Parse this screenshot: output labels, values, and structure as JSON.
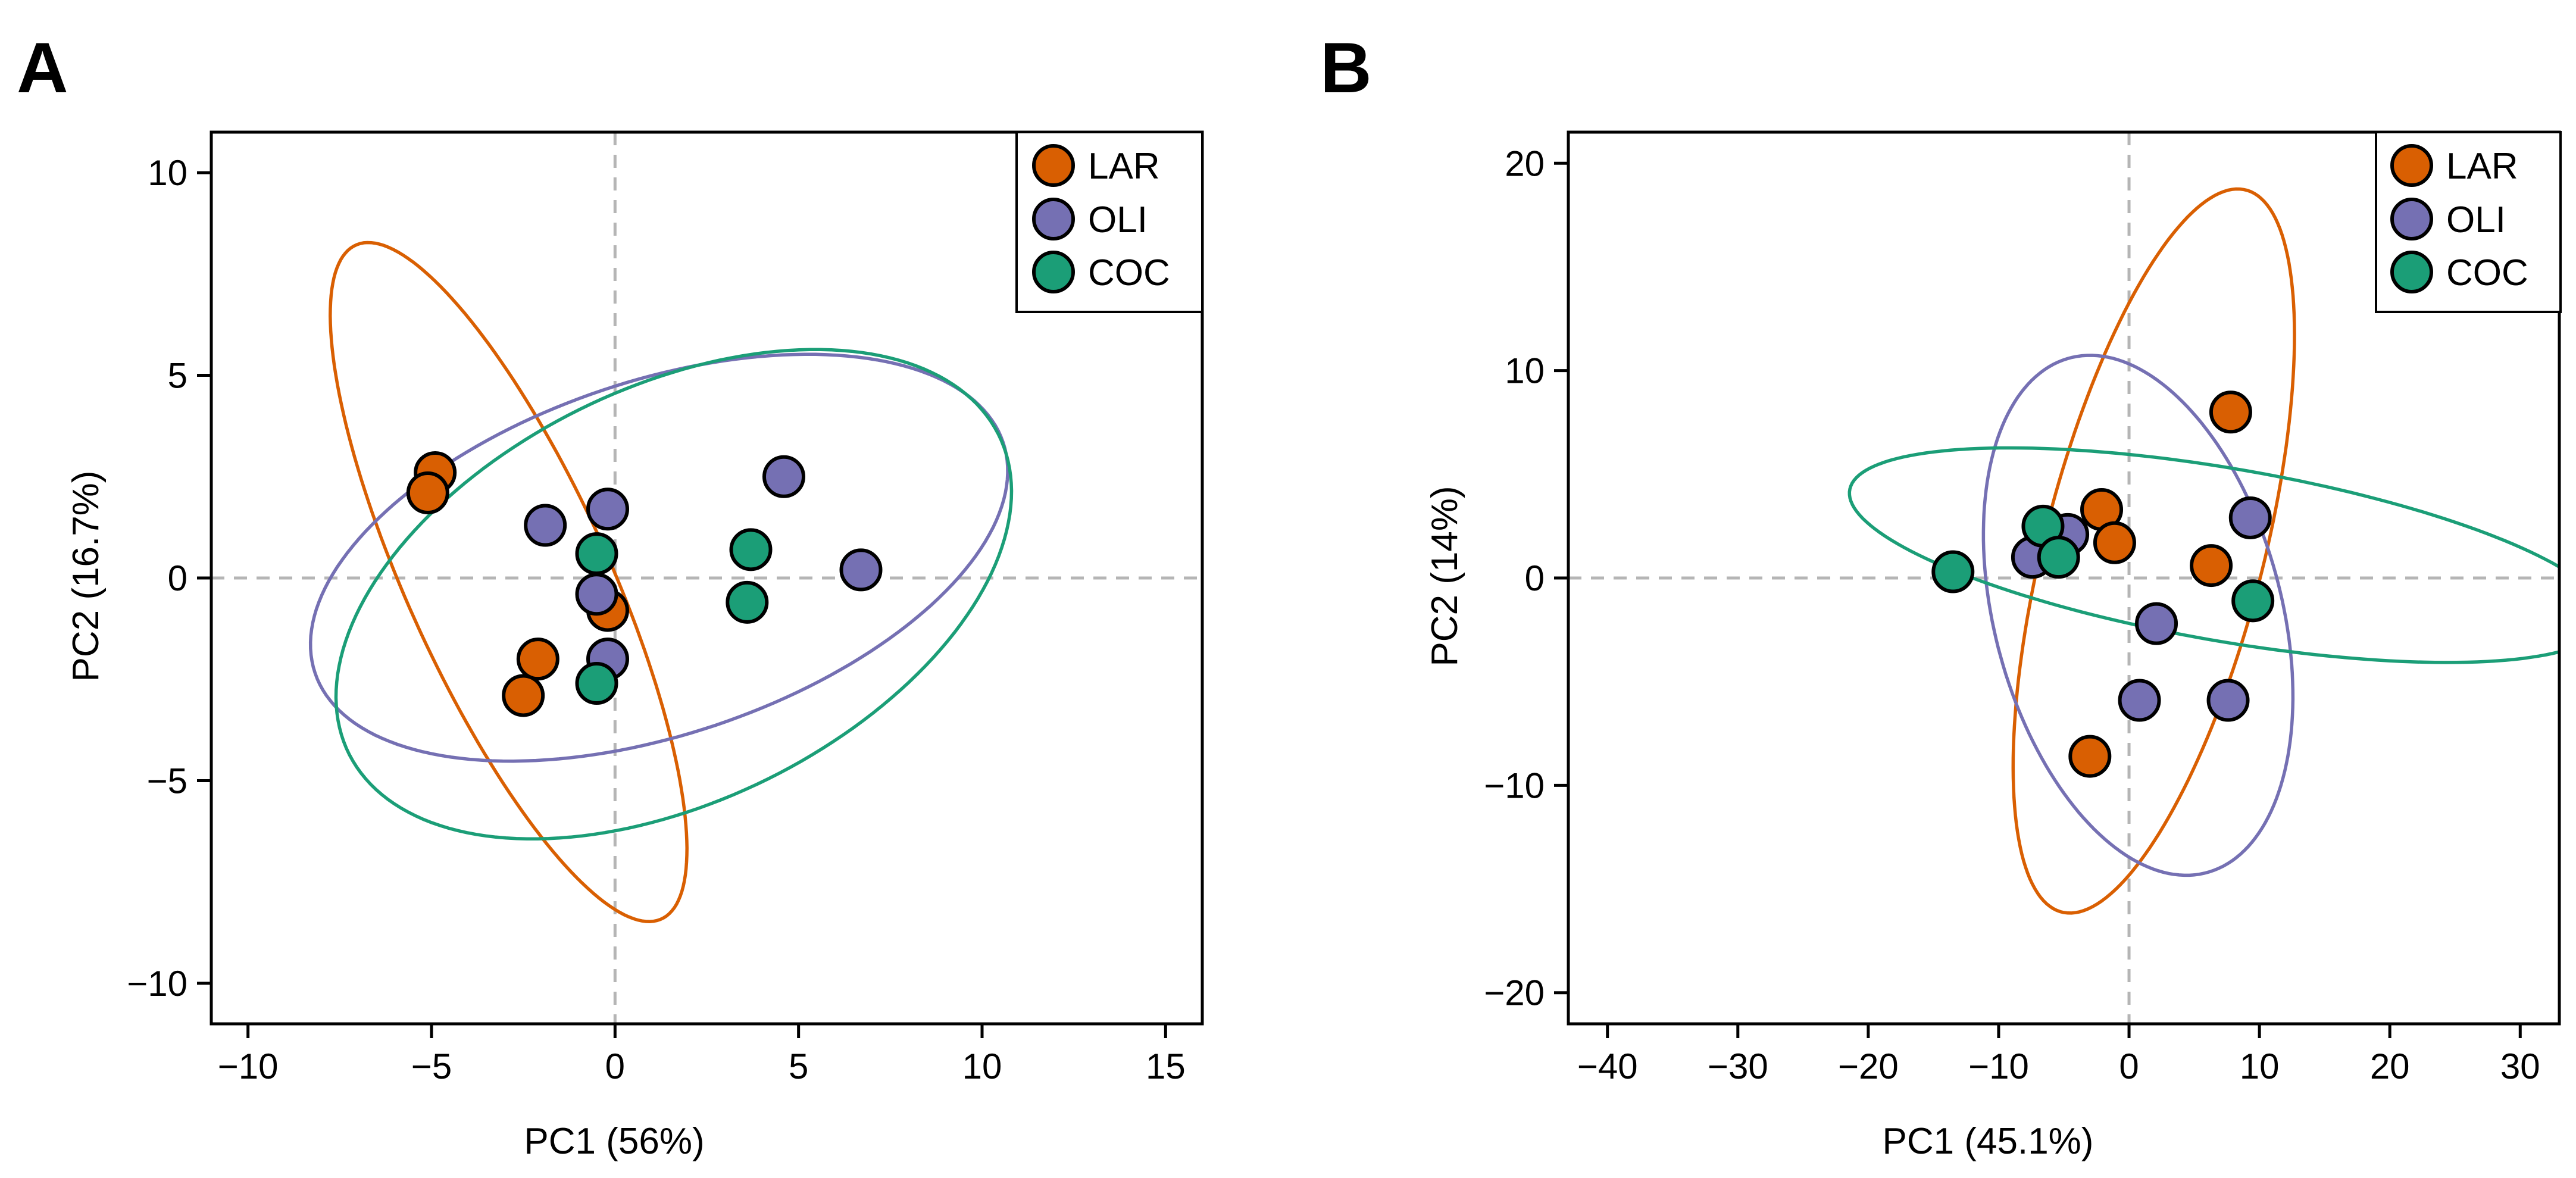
{
  "chart_data": [
    {
      "type": "scatter",
      "panel_label": "A",
      "xlabel": "PC1 (56%)",
      "ylabel": "PC2 (16.7%)",
      "xlim": [
        -11,
        16
      ],
      "ylim": [
        -11,
        11
      ],
      "xticks": [
        -10,
        -5,
        0,
        5,
        10,
        15
      ],
      "yticks": [
        -10,
        -5,
        0,
        5,
        10
      ],
      "xtick_labels": [
        "−10",
        "−5",
        "0",
        "5",
        "10",
        "15"
      ],
      "ytick_labels": [
        "−10",
        "−5",
        "0",
        "5",
        "10"
      ],
      "legend_position": "top-right",
      "series": [
        {
          "name": "LAR",
          "color": "#d95f02",
          "points": [
            [
              -4.9,
              2.6
            ],
            [
              -5.1,
              2.1
            ],
            [
              -2.1,
              -2.0
            ],
            [
              -2.5,
              -2.9
            ],
            [
              -0.2,
              -0.8
            ]
          ],
          "ellipse": {
            "center": [
              -2.9,
              -0.1
            ],
            "semi_major": 9.3,
            "semi_minor": 2.7,
            "angle_deg": -63
          }
        },
        {
          "name": "OLI",
          "color": "#7570b3",
          "points": [
            [
              -1.9,
              1.3
            ],
            [
              -0.2,
              1.7
            ],
            [
              -0.5,
              -0.4
            ],
            [
              -0.2,
              -2.0
            ],
            [
              4.6,
              2.5
            ],
            [
              6.7,
              0.2
            ]
          ],
          "ellipse": {
            "center": [
              1.2,
              0.5
            ],
            "semi_major": 9.8,
            "semi_minor": 4.4,
            "angle_deg": 16
          }
        },
        {
          "name": "COC",
          "color": "#1b9e77",
          "points": [
            [
              -0.5,
              0.6
            ],
            [
              -0.5,
              -2.6
            ],
            [
              3.7,
              0.7
            ],
            [
              3.6,
              -0.6
            ]
          ],
          "ellipse": {
            "center": [
              1.6,
              -0.4
            ],
            "semi_major": 9.7,
            "semi_minor": 5.2,
            "angle_deg": 22
          }
        }
      ]
    },
    {
      "type": "scatter",
      "panel_label": "B",
      "xlabel": "PC1 (45.1%)",
      "ylabel": "PC2 (14%)",
      "xlim": [
        -43,
        33
      ],
      "ylim": [
        -21.5,
        21.5
      ],
      "xticks": [
        -40,
        -30,
        -20,
        -10,
        0,
        10,
        20,
        30
      ],
      "yticks": [
        -20,
        -10,
        0,
        10,
        20
      ],
      "xtick_labels": [
        "−40",
        "−30",
        "−20",
        "−10",
        "0",
        "10",
        "20",
        "30"
      ],
      "ytick_labels": [
        "−20",
        "−10",
        "0",
        "10",
        "20"
      ],
      "legend_position": "top-right",
      "series": [
        {
          "name": "LAR",
          "color": "#d95f02",
          "points": [
            [
              -2.1,
              3.3
            ],
            [
              -1.1,
              1.7
            ],
            [
              7.8,
              8.0
            ],
            [
              6.3,
              0.6
            ],
            [
              -3.0,
              -8.6
            ]
          ],
          "ellipse": {
            "center": [
              1.9,
              1.3
            ],
            "semi_major": 18.9,
            "semi_minor": 8.0,
            "angle_deg": 65
          }
        },
        {
          "name": "OLI",
          "color": "#7570b3",
          "points": [
            [
              -7.4,
              1.0
            ],
            [
              -4.7,
              2.1
            ],
            [
              9.3,
              2.9
            ],
            [
              2.1,
              -2.2
            ],
            [
              0.8,
              -5.9
            ],
            [
              7.6,
              -5.9
            ]
          ],
          "ellipse": {
            "center": [
              0.7,
              -1.8
            ],
            "semi_major": 14.0,
            "semi_minor": 10.1,
            "angle_deg": -50
          }
        },
        {
          "name": "COC",
          "color": "#1b9e77",
          "points": [
            [
              -13.5,
              0.3
            ],
            [
              -6.6,
              2.5
            ],
            [
              -5.4,
              1.0
            ],
            [
              9.5,
              -1.1
            ]
          ],
          "ellipse": {
            "center": [
              7.6,
              1.1
            ],
            "semi_major": 29.2,
            "semi_minor": 4.2,
            "angle_deg": -6
          }
        }
      ]
    }
  ]
}
